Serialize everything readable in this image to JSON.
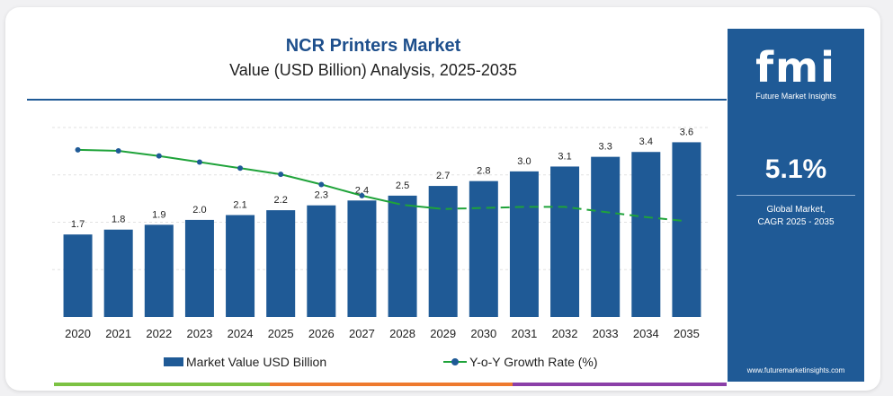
{
  "chart_data": {
    "type": "bar",
    "title": "NCR Printers Market",
    "subtitle": "Value (USD Billion) Analysis, 2025-2035",
    "categories": [
      "2020",
      "2021",
      "2022",
      "2023",
      "2024",
      "2025",
      "2026",
      "2027",
      "2028",
      "2029",
      "2030",
      "2031",
      "2032",
      "2033",
      "2034",
      "2035"
    ],
    "series": [
      {
        "name": "Market Value USD Billion",
        "kind": "bar",
        "color": "#1f5a96",
        "values": [
          1.7,
          1.8,
          1.9,
          2.0,
          2.1,
          2.2,
          2.3,
          2.4,
          2.5,
          2.7,
          2.8,
          3.0,
          3.1,
          3.3,
          3.4,
          3.6
        ],
        "labels": [
          "1.7",
          "1.8",
          "1.9",
          "2.0",
          "2.1",
          "2.2",
          "2.3",
          "2.4",
          "2.5",
          "2.7",
          "2.8",
          "3.0",
          "3.1",
          "3.3",
          "3.4",
          "3.6"
        ]
      },
      {
        "name": "Y-o-Y Growth Rate (%)",
        "kind": "line",
        "color": "#1fa33a",
        "marker_color": "#1f5a96",
        "values": [
          8.2,
          8.15,
          7.9,
          7.6,
          7.3,
          7.0,
          6.5,
          5.95,
          5.5,
          5.3,
          5.35,
          5.4,
          5.4,
          5.15,
          4.9,
          4.7
        ],
        "dashed_from_index": 9
      }
    ],
    "ylim_bar": [
      0,
      4.2
    ],
    "ylim_line": [
      0,
      10
    ],
    "grid": "horizontal-dashed",
    "legend": "bottom-center"
  },
  "side_panel": {
    "logo": "fmi",
    "logo_caption": "Future Market Insights",
    "cagr_value": "5.1%",
    "cagr_label_line1": "Global Market,",
    "cagr_label_line2": "CAGR 2025 - 2035",
    "website": "www.futuremarketinsights.com"
  },
  "colors": {
    "bar": "#1f5a96",
    "line": "#1fa33a",
    "panel": "#1f5a96",
    "bottom_bar": [
      "#7cc243",
      "#ee7a2e",
      "#8b3fa8"
    ]
  }
}
